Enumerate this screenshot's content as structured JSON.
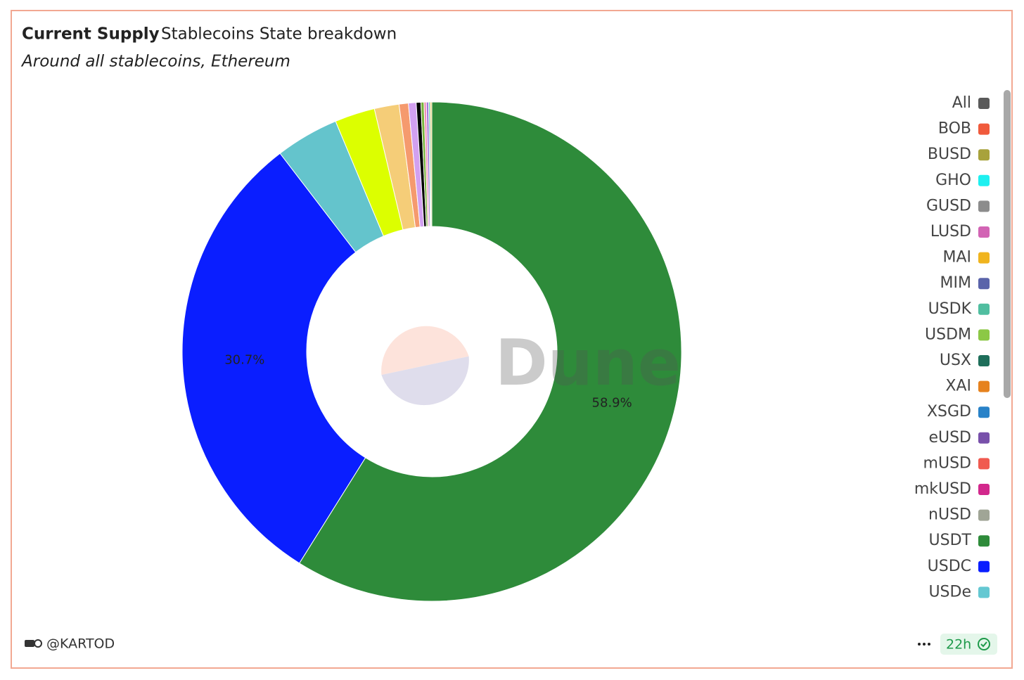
{
  "header": {
    "title": "Current Supply",
    "name": "Stablecoins State breakdown",
    "subtitle": "Around all stablecoins, Ethereum"
  },
  "chart_data": {
    "type": "donut",
    "categories": [
      "USDT",
      "USDC",
      "USDe",
      null,
      null,
      null,
      null,
      null,
      null,
      null,
      null,
      null,
      null
    ],
    "values": [
      58.9,
      30.7,
      4.1,
      2.6,
      1.6,
      0.6,
      0.5,
      0.3,
      0.2,
      0.15,
      0.15,
      0.1,
      0.1
    ],
    "value_labels": [
      "58.9%",
      "30.7%",
      null,
      null,
      null,
      null,
      null,
      null,
      null,
      null,
      null,
      null,
      null
    ],
    "colors": [
      "#2e8b3a",
      "#0a1eff",
      "#64c4cc",
      "#dcff00",
      "#f5cd78",
      "#f59a6e",
      "#d2a0f0",
      "#000000",
      "#78b43c",
      "#f08cb4",
      "#a078dc",
      "#5ac8a0",
      "#e6c864"
    ],
    "legend": {
      "position": "right",
      "entries": [
        {
          "name": "All",
          "color": "#5a5a5a"
        },
        {
          "name": "BOB",
          "color": "#f05a3c"
        },
        {
          "name": "BUSD",
          "color": "#a8a23c"
        },
        {
          "name": "GHO",
          "color": "#1ef0f0"
        },
        {
          "name": "GUSD",
          "color": "#8c8c8c"
        },
        {
          "name": "LUSD",
          "color": "#d264b4"
        },
        {
          "name": "MAI",
          "color": "#f0b41e"
        },
        {
          "name": "MIM",
          "color": "#5a64aa"
        },
        {
          "name": "USDK",
          "color": "#50bea0"
        },
        {
          "name": "USDM",
          "color": "#8cc846"
        },
        {
          "name": "USX",
          "color": "#1e6e5a"
        },
        {
          "name": "XAI",
          "color": "#e6821e"
        },
        {
          "name": "XSGD",
          "color": "#2882c8"
        },
        {
          "name": "eUSD",
          "color": "#7850aa"
        },
        {
          "name": "mUSD",
          "color": "#f05a50"
        },
        {
          "name": "mkUSD",
          "color": "#d2288c"
        },
        {
          "name": "nUSD",
          "color": "#a0a596"
        },
        {
          "name": "USDT",
          "color": "#2e8b3a"
        },
        {
          "name": "USDC",
          "color": "#0a1eff"
        },
        {
          "name": "USDe",
          "color": "#64c8d2"
        }
      ]
    },
    "watermark": "Dune"
  },
  "footer": {
    "author": "@KARTOD",
    "age": "22h"
  }
}
